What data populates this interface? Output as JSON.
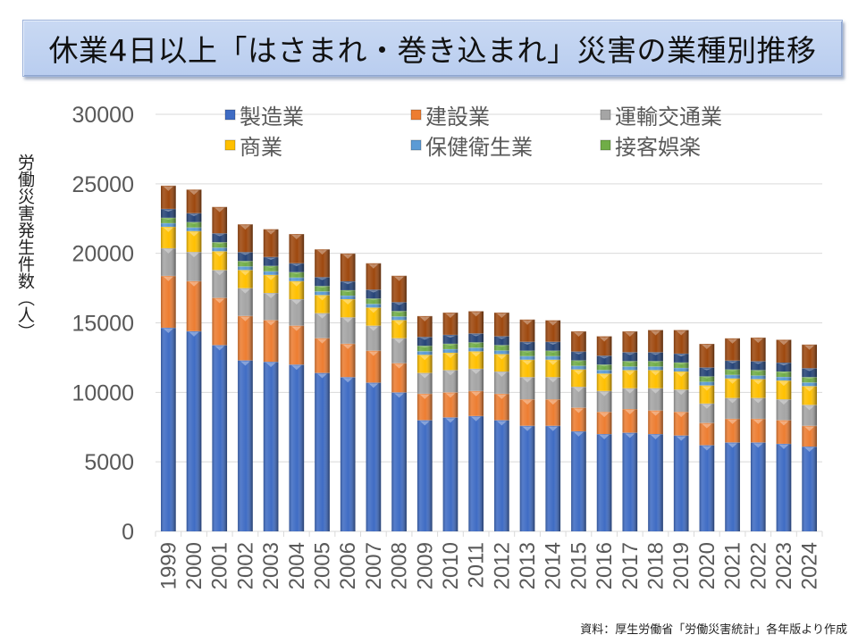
{
  "title": "休業4日以上「はさまれ・巻き込まれ」災害の業種別推移",
  "source": "資料：厚生労働省「労働災害統計」各年版より作成",
  "chart_data": {
    "type": "bar",
    "stacked": true,
    "title": "休業4日以上「はさまれ・巻き込まれ」災害の業種別推移",
    "xlabel": "",
    "ylabel": "労働災害発生件数（人）",
    "ylim": [
      0,
      30000
    ],
    "yticks": [
      0,
      5000,
      10000,
      15000,
      20000,
      25000,
      30000
    ],
    "grid": true,
    "legend_position": "top",
    "categories": [
      "1999",
      "2000",
      "2001",
      "2002",
      "2003",
      "2004",
      "2005",
      "2006",
      "2007",
      "2008",
      "2009",
      "2010",
      "2011",
      "2012",
      "2013",
      "2014",
      "2015",
      "2016",
      "2017",
      "2018",
      "2019",
      "2020",
      "2021",
      "2022",
      "2023",
      "2024"
    ],
    "series": [
      {
        "name": "製造業",
        "color": "#3f6cc4",
        "legend": true,
        "values": [
          14650,
          14400,
          13400,
          12300,
          12200,
          12000,
          11400,
          11100,
          10700,
          10000,
          8000,
          8200,
          8300,
          8000,
          7600,
          7600,
          7200,
          7000,
          7100,
          7000,
          6900,
          6200,
          6400,
          6400,
          6300,
          6100
        ]
      },
      {
        "name": "建設業",
        "color": "#ed7d31",
        "legend": true,
        "values": [
          3730,
          3600,
          3400,
          3200,
          3000,
          2800,
          2500,
          2400,
          2300,
          2100,
          1900,
          1800,
          1800,
          1900,
          1900,
          1900,
          1700,
          1600,
          1700,
          1700,
          1700,
          1600,
          1700,
          1700,
          1700,
          1500
        ]
      },
      {
        "name": "運輸交通業",
        "color": "#a5a5a5",
        "legend": true,
        "values": [
          1990,
          2100,
          2000,
          2000,
          1950,
          1900,
          1800,
          1900,
          1800,
          1800,
          1500,
          1600,
          1600,
          1600,
          1600,
          1600,
          1500,
          1500,
          1500,
          1600,
          1600,
          1400,
          1500,
          1500,
          1500,
          1500
        ]
      },
      {
        "name": "商業",
        "color": "#ffc000",
        "legend": true,
        "values": [
          1540,
          1500,
          1350,
          1300,
          1300,
          1300,
          1300,
          1300,
          1300,
          1300,
          1300,
          1250,
          1250,
          1250,
          1250,
          1250,
          1250,
          1250,
          1300,
          1300,
          1300,
          1300,
          1400,
          1350,
          1350,
          1350
        ]
      },
      {
        "name": "保健衛生業",
        "color": "#5b9bd5",
        "legend": true,
        "values": [
          260,
          260,
          260,
          260,
          260,
          260,
          260,
          260,
          260,
          260,
          260,
          260,
          260,
          260,
          260,
          260,
          260,
          260,
          260,
          260,
          260,
          260,
          260,
          260,
          260,
          260
        ]
      },
      {
        "name": "接客娯楽",
        "color": "#70ad47",
        "legend": true,
        "values": [
          390,
          390,
          390,
          390,
          390,
          390,
          390,
          390,
          390,
          390,
          390,
          390,
          390,
          390,
          390,
          390,
          390,
          390,
          390,
          390,
          390,
          390,
          390,
          390,
          390,
          390
        ]
      },
      {
        "name": "",
        "color": "#264478",
        "legend": false,
        "values": [
          640,
          640,
          640,
          640,
          640,
          640,
          640,
          640,
          640,
          640,
          640,
          640,
          640,
          640,
          640,
          640,
          640,
          640,
          640,
          640,
          640,
          640,
          640,
          640,
          640,
          640
        ]
      },
      {
        "name": "",
        "color": "#9e480e",
        "legend": false,
        "values": [
          1670,
          1700,
          1900,
          2000,
          2000,
          2100,
          2000,
          2000,
          1900,
          1900,
          1500,
          1600,
          1600,
          1700,
          1600,
          1550,
          1450,
          1400,
          1500,
          1600,
          1700,
          1700,
          1600,
          1700,
          1650,
          1700
        ]
      }
    ]
  }
}
